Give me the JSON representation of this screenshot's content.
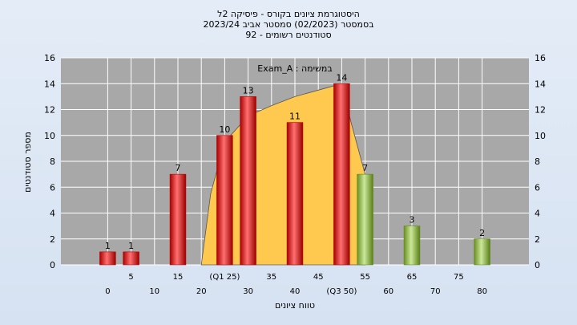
{
  "title_lines": [
    "היסטוגרמת ציונים בקורס - פיסיקה 2ל",
    "בסמסטר  (02/2023)  סמסטר אביב 2023/24",
    "סטודנטים רשומים - 92"
  ],
  "legend_label": "במשימה : Exam_A",
  "chart_data": {
    "type": "bar",
    "xlabel": "טווח ציונים",
    "ylabel": "מספר סטודנטים",
    "ylim": [
      0,
      16
    ],
    "ytick_step": 2,
    "xlim": [
      -10,
      90
    ],
    "x_ticks": [
      {
        "x": 0,
        "label": "0",
        "row": 1
      },
      {
        "x": 5,
        "label": "5",
        "row": 0
      },
      {
        "x": 10,
        "label": "10",
        "row": 1
      },
      {
        "x": 15,
        "label": "15",
        "row": 0
      },
      {
        "x": 20,
        "label": "20",
        "row": 1
      },
      {
        "x": 25,
        "label": "(Q1 25)",
        "row": 0
      },
      {
        "x": 30,
        "label": "30",
        "row": 1
      },
      {
        "x": 35,
        "label": "35",
        "row": 0
      },
      {
        "x": 40,
        "label": "40",
        "row": 1
      },
      {
        "x": 45,
        "label": "45",
        "row": 0
      },
      {
        "x": 50,
        "label": "(Q3 50)",
        "row": 1
      },
      {
        "x": 55,
        "label": "55",
        "row": 0
      },
      {
        "x": 60,
        "label": "60",
        "row": 1
      },
      {
        "x": 65,
        "label": "65",
        "row": 0
      },
      {
        "x": 70,
        "label": "70",
        "row": 1
      },
      {
        "x": 75,
        "label": "75",
        "row": 0
      },
      {
        "x": 80,
        "label": "80",
        "row": 1
      }
    ],
    "bars": [
      {
        "x": 0,
        "value": 1,
        "label": "1",
        "color": "fail"
      },
      {
        "x": 5,
        "value": 1,
        "label": "1",
        "color": "fail"
      },
      {
        "x": 15,
        "value": 7,
        "label": "7",
        "color": "fail"
      },
      {
        "x": 25,
        "value": 10,
        "label": "10",
        "color": "fail"
      },
      {
        "x": 30,
        "value": 13,
        "label": "13",
        "color": "fail"
      },
      {
        "x": 40,
        "value": 11,
        "label": "11",
        "color": "fail"
      },
      {
        "x": 50,
        "value": 14,
        "label": "14",
        "color": "fail"
      },
      {
        "x": 55,
        "value": 7,
        "label": "7",
        "color": "pass"
      },
      {
        "x": 65,
        "value": 3,
        "label": "3",
        "color": "pass"
      },
      {
        "x": 80,
        "value": 2,
        "label": "2",
        "color": "pass"
      }
    ],
    "area_series": [
      {
        "x": 20,
        "y": 0
      },
      {
        "x": 22,
        "y": 5.5
      },
      {
        "x": 25,
        "y": 9.5
      },
      {
        "x": 30,
        "y": 11.5
      },
      {
        "x": 35,
        "y": 12.3
      },
      {
        "x": 40,
        "y": 13
      },
      {
        "x": 45,
        "y": 13.5
      },
      {
        "x": 50,
        "y": 14
      },
      {
        "x": 52,
        "y": 11
      },
      {
        "x": 55,
        "y": 7
      }
    ],
    "colors": {
      "plot_bg": "#a8a8a8",
      "grid": "#ffffff",
      "area": "#ffc84e",
      "fail_light": "#ff6a6a",
      "fail_dark": "#b80000",
      "pass_light": "#c8e690",
      "pass_dark": "#5f8a1a",
      "curve_gray": "#bdbdbd"
    }
  }
}
